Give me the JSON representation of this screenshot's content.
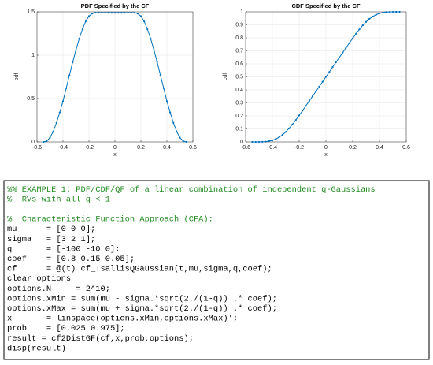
{
  "chart_data": [
    {
      "type": "line",
      "title": "PDF Specified by the CF",
      "xlabel": "x",
      "ylabel": "pdf",
      "x": [
        -0.55,
        -0.525,
        -0.5,
        -0.475,
        -0.45,
        -0.425,
        -0.4,
        -0.375,
        -0.35,
        -0.325,
        -0.3,
        -0.275,
        -0.25,
        -0.225,
        -0.2,
        -0.175,
        -0.15,
        -0.125,
        -0.1,
        -0.075,
        -0.05,
        -0.025,
        0,
        0.025,
        0.05,
        0.075,
        0.1,
        0.125,
        0.15,
        0.175,
        0.2,
        0.225,
        0.25,
        0.275,
        0.3,
        0.325,
        0.35,
        0.375,
        0.4,
        0.425,
        0.45,
        0.475,
        0.5,
        0.525,
        0.55
      ],
      "series": [
        {
          "color": "#0072bd",
          "values": [
            0,
            0.01,
            0.05,
            0.12,
            0.22,
            0.34,
            0.47,
            0.62,
            0.77,
            0.92,
            1.06,
            1.19,
            1.3,
            1.39,
            1.45,
            1.48,
            1.49,
            1.49,
            1.49,
            1.49,
            1.49,
            1.49,
            1.49,
            1.49,
            1.49,
            1.49,
            1.49,
            1.49,
            1.49,
            1.48,
            1.45,
            1.39,
            1.3,
            1.19,
            1.06,
            0.92,
            0.77,
            0.62,
            0.47,
            0.34,
            0.22,
            0.12,
            0.05,
            0.01,
            0
          ]
        }
      ],
      "xlim": [
        -0.6,
        0.6
      ],
      "xticks": [
        -0.6,
        -0.4,
        -0.2,
        0,
        0.2,
        0.4,
        0.6
      ],
      "ylim": [
        0,
        1.5
      ],
      "yticks": [
        0,
        0.5,
        1,
        1.5
      ],
      "grid": true
    },
    {
      "type": "line",
      "title": "CDF Specified by the CF",
      "xlabel": "x",
      "ylabel": "cdf",
      "x": [
        -0.55,
        -0.525,
        -0.5,
        -0.475,
        -0.45,
        -0.425,
        -0.4,
        -0.375,
        -0.35,
        -0.325,
        -0.3,
        -0.275,
        -0.25,
        -0.225,
        -0.2,
        -0.175,
        -0.15,
        -0.125,
        -0.1,
        -0.075,
        -0.05,
        -0.025,
        0,
        0.025,
        0.05,
        0.075,
        0.1,
        0.125,
        0.15,
        0.175,
        0.2,
        0.225,
        0.25,
        0.275,
        0.3,
        0.325,
        0.35,
        0.375,
        0.4,
        0.425,
        0.45,
        0.475,
        0.5,
        0.525,
        0.55
      ],
      "series": [
        {
          "color": "#0072bd",
          "values": [
            0,
            0,
            0,
            0.001,
            0.002,
            0.006,
            0.012,
            0.022,
            0.036,
            0.054,
            0.077,
            0.104,
            0.135,
            0.168,
            0.204,
            0.24,
            0.277,
            0.314,
            0.351,
            0.388,
            0.425,
            0.463,
            0.5,
            0.537,
            0.575,
            0.612,
            0.649,
            0.686,
            0.723,
            0.76,
            0.796,
            0.832,
            0.865,
            0.896,
            0.923,
            0.946,
            0.964,
            0.978,
            0.988,
            0.994,
            0.998,
            0.999,
            1,
            1,
            1
          ]
        }
      ],
      "xlim": [
        -0.6,
        0.6
      ],
      "xticks": [
        -0.6,
        -0.4,
        -0.2,
        0,
        0.2,
        0.4,
        0.6
      ],
      "ylim": [
        0,
        1
      ],
      "yticks": [
        0,
        0.1,
        0.2,
        0.3,
        0.4,
        0.5,
        0.6,
        0.7,
        0.8,
        0.9,
        1
      ],
      "grid": true
    }
  ],
  "code": {
    "blocks": [
      {
        "lines": [
          "%% EXAMPLE 1: PDF/CDF/QF of a linear combination of independent q-Gaussians",
          "%  RVs with all q < 1"
        ]
      },
      {
        "lines": [
          "%  Characteristic Function Approach (CFA):",
          "mu      = [0 0 0];",
          "sigma   = [3 2 1];",
          "q       = [-100 -10 0];",
          "coef    = [0.8 0.15 0.05];",
          "cf      = @(t) cf_TsallisQGaussian(t,mu,sigma,q,coef);",
          "clear options",
          "options.N     = 2^10;",
          "options.xMin = sum(mu - sigma.*sqrt(2./(1-q)) .* coef);",
          "options.xMax = sum(mu + sigma.*sqrt(2./(1-q)) .* coef);",
          "x       = linspace(options.xMin,options.xMax)';",
          "prob    = [0.025 0.975];",
          "result = cf2DistGF(cf,x,prob,options);",
          "disp(result)"
        ]
      }
    ]
  }
}
